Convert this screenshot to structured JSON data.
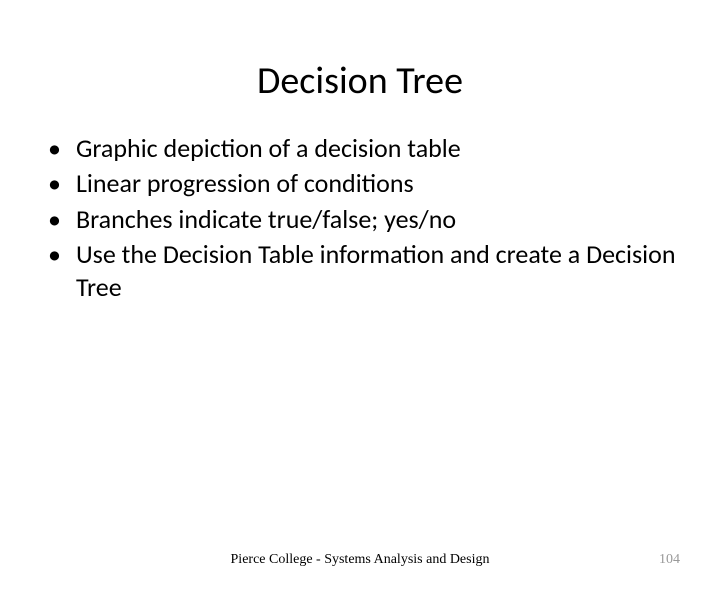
{
  "slide": {
    "title": "Decision Tree",
    "title_fontsize": 38,
    "title_color": "#000000",
    "bullets": [
      "Graphic depiction of a decision table",
      "Linear progression of conditions",
      "Branches indicate true/false; yes/no",
      "Use the Decision Table information and create a Decision Tree"
    ],
    "bullet_fontsize": 26,
    "bullet_color": "#000000",
    "footer": "Pierce College - Systems Analysis and Design",
    "footer_fontsize": 14,
    "footer_font": "Times New Roman",
    "page_number": "104",
    "page_number_color": "#999999",
    "background_color": "#ffffff"
  }
}
